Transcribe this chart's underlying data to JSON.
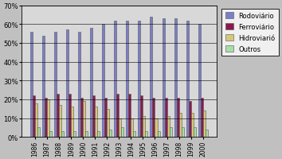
{
  "years": [
    1986,
    1987,
    1988,
    1989,
    1990,
    1991,
    1992,
    1993,
    1994,
    1995,
    1996,
    1997,
    1998,
    1999,
    2000
  ],
  "rodoviario": [
    56,
    54,
    56,
    57,
    56,
    58,
    60,
    62,
    62,
    62,
    64,
    63,
    63,
    62,
    60
  ],
  "ferroviario": [
    22,
    21,
    23,
    23,
    21,
    22,
    21,
    23,
    23,
    22,
    21,
    21,
    21,
    19,
    21
  ],
  "hidroviario": [
    18,
    20,
    17,
    16,
    19,
    16,
    15,
    10,
    10,
    11,
    10,
    11,
    13,
    13,
    14
  ],
  "outros": [
    5,
    3,
    3,
    3,
    3,
    3,
    4,
    5,
    3,
    3,
    3,
    5,
    5,
    5,
    4
  ],
  "colors": {
    "rodoviario": "#7B7EC8",
    "ferroviario": "#8B1A4A",
    "hidroviario": "#D4C87A",
    "outros": "#AADDA8"
  },
  "legend_labels": [
    "Rodoviário",
    "Ferroviário",
    "Hidroviarió",
    "Outros"
  ],
  "ylim": [
    0,
    70
  ],
  "yticks": [
    0,
    10,
    20,
    30,
    40,
    50,
    60,
    70
  ],
  "background_color": "#C0C0C0",
  "plot_area_color": "#D8D8D8",
  "legend_box_color": "#F0F0F0"
}
